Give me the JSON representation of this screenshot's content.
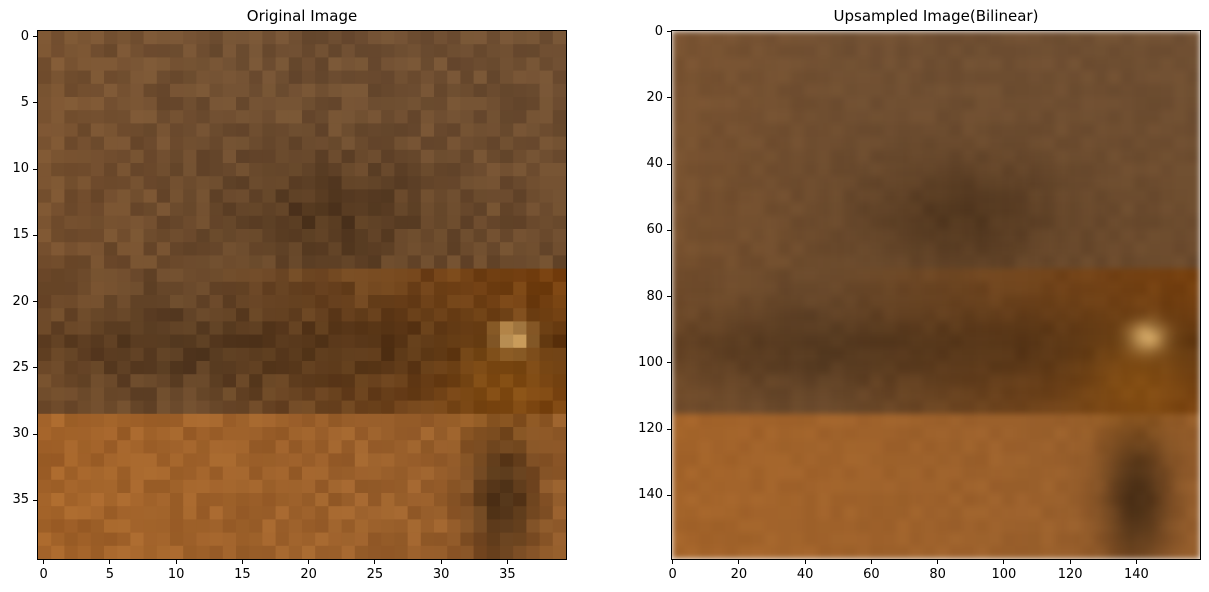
{
  "panels": [
    {
      "title": "Original Image",
      "image_resolution": 40,
      "x_ticks": [
        "0",
        "5",
        "10",
        "15",
        "20",
        "25",
        "30",
        "35"
      ],
      "x_tick_values": [
        0,
        5,
        10,
        15,
        20,
        25,
        30,
        35
      ],
      "y_ticks": [
        "0",
        "5",
        "10",
        "15",
        "20",
        "25",
        "30",
        "35"
      ],
      "y_tick_values": [
        0,
        5,
        10,
        15,
        20,
        25,
        30,
        35
      ],
      "xlim": [
        -0.5,
        39.5
      ],
      "ylim": [
        39.5,
        -0.5
      ],
      "interpolation": "nearest"
    },
    {
      "title": "Upsampled Image(Bilinear)",
      "image_resolution": 160,
      "x_ticks": [
        "0",
        "20",
        "40",
        "60",
        "80",
        "100",
        "120",
        "140"
      ],
      "x_tick_values": [
        0,
        20,
        40,
        60,
        80,
        100,
        120,
        140
      ],
      "y_ticks": [
        "0",
        "20",
        "40",
        "60",
        "80",
        "100",
        "120",
        "140"
      ],
      "y_tick_values": [
        0,
        20,
        40,
        60,
        80,
        100,
        120,
        140
      ],
      "xlim": [
        -0.5,
        159.5
      ],
      "ylim": [
        159.5,
        -0.5
      ],
      "interpolation": "bilinear"
    }
  ],
  "palette": {
    "dark_brown": "#3a2410",
    "mid_brown": "#6b4a2c",
    "warm_brown": "#8a5a30",
    "orange_brown": "#a4642a",
    "deep_orange": "#7a3e08",
    "highlight": "#d8ad6a"
  }
}
